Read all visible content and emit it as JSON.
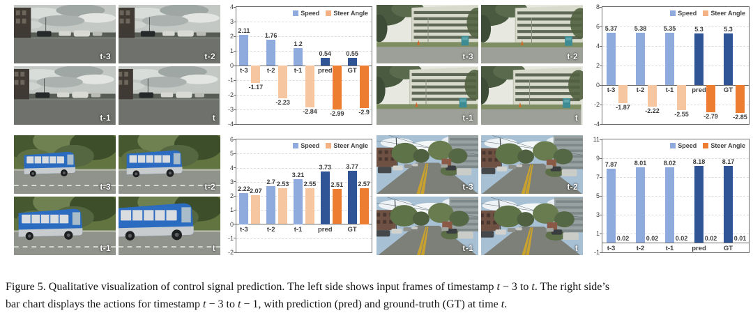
{
  "colors": {
    "speed_hist": "#8FAADC",
    "speed_pred": "#2F5597",
    "steer_hist": "#F6C6A0",
    "steer_pred": "#ED7D31",
    "axis_text": "#404040",
    "grid_line": "#DCDCDC",
    "border": "#6A6A6A"
  },
  "panels": [
    {
      "name": "urban-intersection",
      "scene": "grayStreet",
      "frames": [
        "t-3",
        "t-2",
        "t-1",
        "t"
      ]
    },
    {
      "name": "apartment-road",
      "scene": "apartment",
      "frames": [
        "t-3",
        "t-2",
        "t-1",
        "t"
      ]
    },
    {
      "name": "blue-bus",
      "scene": "bus",
      "frames": [
        "t-3",
        "t-2",
        "t-1",
        "t"
      ]
    },
    {
      "name": "tree-lined-street",
      "scene": "treeStreet",
      "frames": [
        "t-3",
        "t-2",
        "t-1",
        "t"
      ]
    }
  ],
  "chart_data": [
    {
      "type": "bar",
      "title": "",
      "categories": [
        "t-3",
        "t-2",
        "t-1",
        "pred",
        "GT"
      ],
      "series": [
        {
          "name": "Speed",
          "values": [
            2.11,
            1.76,
            1.2,
            0.54,
            0.55
          ],
          "labels": [
            "2.11",
            "1.76",
            "1.2",
            "0.54",
            "0.55"
          ]
        },
        {
          "name": "Steer Angle",
          "values": [
            -1.17,
            -2.23,
            -2.84,
            -2.99,
            -2.9
          ],
          "labels": [
            "-1.17",
            "-2.23",
            "-2.84",
            "-2.99",
            "-2.9"
          ]
        }
      ],
      "ylim": [
        -4,
        4
      ],
      "yticks": [
        4,
        3,
        2,
        1,
        0,
        -1,
        -2,
        -3,
        -4
      ],
      "grid": true,
      "legend_position": "top-right",
      "legend_swatches": {
        "speed": "#8FAADC",
        "steer": "#F4B183"
      }
    },
    {
      "type": "bar",
      "title": "",
      "categories": [
        "t-3",
        "t-2",
        "t-1",
        "pred",
        "GT"
      ],
      "series": [
        {
          "name": "Speed",
          "values": [
            5.37,
            5.38,
            5.35,
            5.3,
            5.3
          ],
          "labels": [
            "5.37",
            "5.38",
            "5.35",
            "5.3",
            "5.3"
          ]
        },
        {
          "name": "Steer Angle",
          "values": [
            -1.87,
            -2.22,
            -2.55,
            -2.79,
            -2.85
          ],
          "labels": [
            "-1.87",
            "-2.22",
            "-2.55",
            "-2.79",
            "-2.85"
          ]
        }
      ],
      "ylim": [
        -4,
        8
      ],
      "yticks": [
        8,
        6,
        4,
        2,
        0,
        -2,
        -4
      ],
      "grid": true,
      "legend_position": "top-right",
      "legend_swatches": {
        "speed": "#8FAADC",
        "steer": "#F4B183"
      }
    },
    {
      "type": "bar",
      "title": "",
      "categories": [
        "t-3",
        "t-2",
        "t-1",
        "pred",
        "GT"
      ],
      "series": [
        {
          "name": "Speed",
          "values": [
            2.22,
            2.7,
            3.21,
            3.73,
            3.77
          ],
          "labels": [
            "2.22",
            "2.7",
            "3.21",
            "3.73",
            "3.77"
          ]
        },
        {
          "name": "Steer Angle",
          "values": [
            2.07,
            2.53,
            2.55,
            2.51,
            2.57
          ],
          "labels": [
            "2.07",
            "2.53",
            "2.55",
            "2.51",
            "2.57"
          ]
        }
      ],
      "ylim": [
        -2,
        6
      ],
      "yticks": [
        6,
        5,
        4,
        3,
        2,
        1,
        0,
        -1,
        -2
      ],
      "grid": true,
      "legend_position": "top-right",
      "legend_swatches": {
        "speed": "#8FAADC",
        "steer": "#F4B183"
      }
    },
    {
      "type": "bar",
      "title": "",
      "categories": [
        "t-3",
        "t-2",
        "t-1",
        "pred",
        "GT"
      ],
      "series": [
        {
          "name": "Speed",
          "values": [
            7.87,
            8.01,
            8.02,
            8.18,
            8.17
          ],
          "labels": [
            "7.87",
            "8.01",
            "8.02",
            "8.18",
            "8.17"
          ]
        },
        {
          "name": "Steer Angle",
          "values": [
            0.02,
            0.02,
            0.02,
            0.02,
            0.01
          ],
          "labels": [
            "0.02",
            "0.02",
            "0.02",
            "0.02",
            "0.01"
          ]
        }
      ],
      "ylim": [
        -1,
        11
      ],
      "yticks": [
        11,
        9,
        7,
        5,
        3,
        1,
        -1
      ],
      "grid": true,
      "legend_position": "top-right",
      "legend_swatches": {
        "speed": "#8FAADC",
        "steer": "#ED7D31"
      }
    }
  ],
  "caption": {
    "lines": [
      [
        {
          "t": "Figure 5. Qualitative visualization of control signal prediction. The left side shows input frames of timestamp "
        },
        {
          "t": "t",
          "i": true
        },
        {
          "t": " − 3 to "
        },
        {
          "t": "t",
          "i": true
        },
        {
          "t": ". The right side’s"
        }
      ],
      [
        {
          "t": "bar chart displays the actions for timestamp "
        },
        {
          "t": "t",
          "i": true
        },
        {
          "t": " − 3 to "
        },
        {
          "t": "t",
          "i": true
        },
        {
          "t": " − 1, with prediction (pred) and ground-truth (GT) at time "
        },
        {
          "t": "t",
          "i": true
        },
        {
          "t": "."
        }
      ]
    ]
  }
}
